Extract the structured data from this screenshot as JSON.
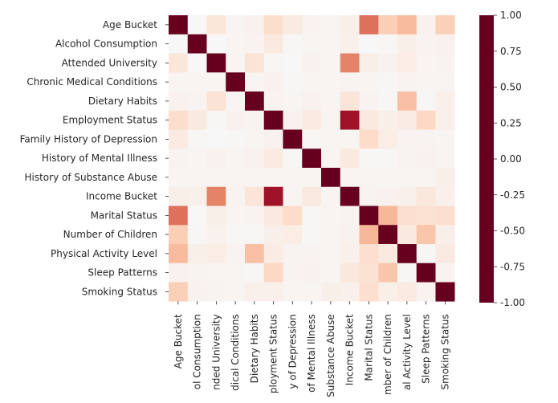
{
  "chart_data": {
    "type": "heatmap",
    "title": "",
    "xlabel": "",
    "ylabel": "",
    "x_tick_labels": [
      "Age Bucket",
      "ol Consumption",
      "nded University",
      "dical Conditions",
      "Dietary Habits",
      "ployment Status",
      "y of Depression",
      "of Mental Illness",
      "Substance Abuse",
      "Income Bucket",
      "Marital Status",
      "mber of Children",
      "al Activity Level",
      "Sleep Patterns",
      "Smoking Status"
    ],
    "y_tick_labels": [
      "Age Bucket",
      "Alcohol Consumption",
      "Attended University",
      "Chronic Medical Conditions",
      "Dietary Habits",
      "Employment Status",
      "Family History of Depression",
      "History of Mental Illness",
      "History of Substance Abuse",
      "Income Bucket",
      "Marital Status",
      "Number of Children",
      "Physical Activity Level",
      "Sleep Patterns",
      "Smoking Status"
    ],
    "values": [
      [
        1.0,
        0.0,
        0.12,
        0.02,
        0.04,
        0.18,
        0.09,
        0.03,
        0.02,
        0.06,
        0.55,
        0.25,
        0.32,
        0.04,
        0.24
      ],
      [
        0.0,
        1.0,
        0.0,
        0.02,
        0.03,
        0.1,
        0.01,
        0.02,
        0.02,
        0.05,
        0.0,
        0.01,
        0.06,
        0.03,
        0.04
      ],
      [
        0.12,
        0.0,
        1.0,
        0.02,
        0.14,
        0.01,
        0.0,
        0.04,
        0.02,
        0.5,
        0.06,
        0.04,
        0.07,
        0.02,
        0.03
      ],
      [
        0.02,
        0.02,
        0.02,
        1.0,
        0.02,
        0.04,
        0.01,
        0.02,
        0.02,
        0.03,
        0.02,
        0.01,
        0.03,
        0.02,
        0.02
      ],
      [
        0.04,
        0.03,
        0.14,
        0.02,
        1.0,
        0.03,
        0.02,
        0.04,
        0.02,
        0.13,
        0.03,
        0.01,
        0.3,
        0.01,
        0.05
      ],
      [
        0.18,
        0.1,
        0.01,
        0.04,
        0.03,
        1.0,
        0.04,
        0.09,
        0.02,
        0.85,
        0.1,
        0.06,
        0.08,
        0.21,
        0.05
      ],
      [
        0.09,
        0.01,
        0.0,
        0.01,
        0.02,
        0.04,
        1.0,
        0.01,
        0.02,
        0.02,
        0.19,
        0.07,
        0.03,
        0.03,
        0.02
      ],
      [
        0.03,
        0.02,
        0.04,
        0.02,
        0.04,
        0.09,
        0.01,
        1.0,
        0.02,
        0.1,
        0.01,
        0.01,
        0.03,
        0.04,
        0.02
      ],
      [
        0.02,
        0.02,
        0.02,
        0.02,
        0.02,
        0.02,
        0.02,
        0.02,
        1.0,
        0.02,
        0.02,
        0.02,
        0.02,
        0.02,
        0.06
      ],
      [
        0.06,
        0.05,
        0.5,
        0.03,
        0.13,
        0.85,
        0.02,
        0.1,
        0.02,
        1.0,
        0.03,
        0.04,
        0.05,
        0.11,
        0.05
      ],
      [
        0.55,
        0.0,
        0.06,
        0.02,
        0.03,
        0.1,
        0.19,
        0.01,
        0.02,
        0.03,
        1.0,
        0.33,
        0.17,
        0.15,
        0.17
      ],
      [
        0.25,
        0.01,
        0.04,
        0.01,
        0.01,
        0.06,
        0.07,
        0.01,
        0.02,
        0.04,
        0.33,
        1.0,
        0.1,
        0.28,
        0.06
      ],
      [
        0.32,
        0.06,
        0.07,
        0.03,
        0.3,
        0.08,
        0.03,
        0.03,
        0.02,
        0.05,
        0.17,
        0.1,
        1.0,
        0.01,
        0.09
      ],
      [
        0.04,
        0.03,
        0.02,
        0.02,
        0.01,
        0.21,
        0.03,
        0.04,
        0.02,
        0.11,
        0.15,
        0.28,
        0.01,
        1.0,
        0.03
      ],
      [
        0.24,
        0.04,
        0.03,
        0.02,
        0.05,
        0.05,
        0.02,
        0.02,
        0.06,
        0.05,
        0.17,
        0.06,
        0.09,
        0.03,
        1.0
      ]
    ],
    "vmin": -1.0,
    "vmax": 1.0,
    "colorbar_ticks": [
      "-1.00",
      "-0.75",
      "-0.50",
      "-0.25",
      "0.00",
      "0.25",
      "0.50",
      "0.75",
      "1.00"
    ],
    "colormap": "RdBu",
    "colormap_stops": [
      "#67001f",
      "#b2182b",
      "#d6604d",
      "#f4a582",
      "#fddbc7",
      "#f7f7f7",
      "#d1e5f0",
      "#92c5de",
      "#4393c3",
      "#2166ac",
      "#053061"
    ],
    "grid": false,
    "legend": "colorbar-right"
  }
}
